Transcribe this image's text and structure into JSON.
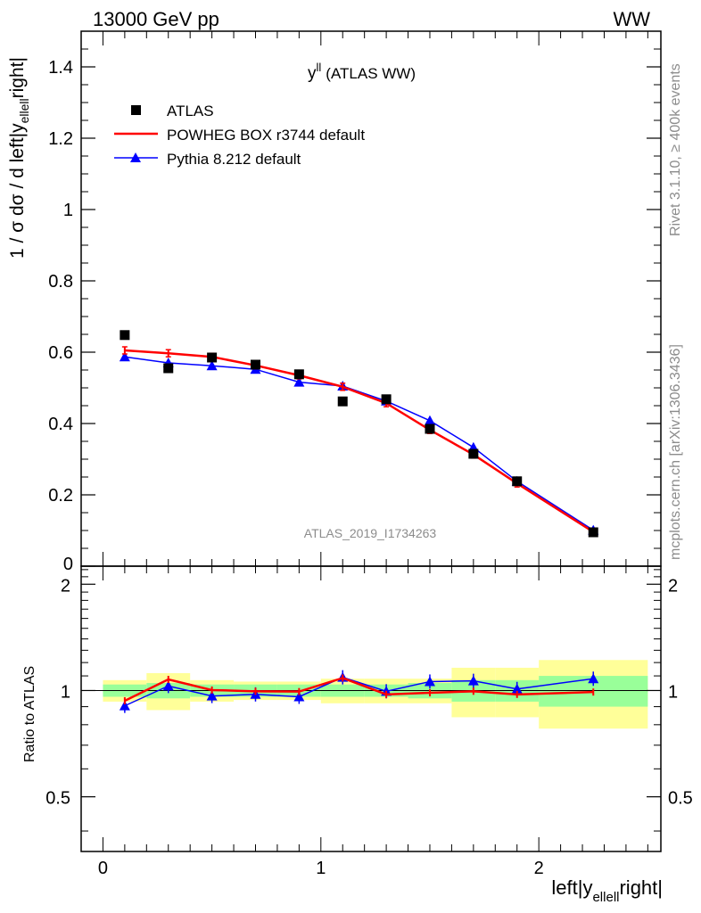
{
  "header": {
    "energy": "13000 GeV pp",
    "process": "WW"
  },
  "side_text": {
    "rivet": "Rivet 3.1.10, ≥ 400k events",
    "mcplots": "mcplots.cern.ch [arXiv:1306.3436]"
  },
  "colors": {
    "data": "#000000",
    "powheg": "#ff0000",
    "pythia": "#0000ff",
    "band_inner": "#99ff99",
    "band_outer": "#ffff99"
  },
  "chart_data": [
    {
      "type": "scatter",
      "panel": "main",
      "title": "y^ll (ATLAS WW)",
      "title_main": "y",
      "title_sup": "ll",
      "title_rest": "(ATLAS WW)",
      "watermark": "ATLAS_2019_I1734263",
      "ylabel": "1 / σ  dσ / d left|y",
      "ylabel_sub": "ellell",
      "ylabel_end": "right|",
      "xlim": [
        -0.1,
        2.56
      ],
      "ylim": [
        0,
        1.5
      ],
      "yticks": [
        0,
        0.2,
        0.4,
        0.6,
        0.8,
        1,
        1.2,
        1.4
      ],
      "ytick_labels": [
        "0",
        "0.2",
        "0.4",
        "0.6",
        "0.8",
        "1",
        "1.2",
        "1.4"
      ],
      "legend_position": "top-left",
      "x": [
        0.1,
        0.3,
        0.5,
        0.7,
        0.9,
        1.1,
        1.3,
        1.5,
        1.7,
        1.9,
        2.25
      ],
      "series": [
        {
          "name": "ATLAS",
          "style": "marker",
          "values": [
            0.648,
            0.555,
            0.585,
            0.565,
            0.538,
            0.462,
            0.468,
            0.385,
            0.315,
            0.238,
            0.095
          ]
        },
        {
          "name": "POWHEG BOX r3744 default",
          "style": "line",
          "values": [
            0.605,
            0.597,
            0.587,
            0.563,
            0.535,
            0.503,
            0.457,
            0.382,
            0.313,
            0.232,
            0.096
          ]
        },
        {
          "name": "Pythia 8.212 default",
          "style": "line-triangle",
          "values": [
            0.587,
            0.57,
            0.562,
            0.552,
            0.516,
            0.505,
            0.463,
            0.408,
            0.333,
            0.238,
            0.101
          ]
        }
      ]
    },
    {
      "type": "line",
      "panel": "ratio",
      "ylabel": "Ratio to ATLAS",
      "xlabel": "left|y",
      "xlabel_sub": "ellell",
      "xlabel_end": "right|",
      "xlim": [
        -0.1,
        2.56
      ],
      "ylim": [
        0.35,
        2.25
      ],
      "yticks": [
        0.5,
        1,
        2
      ],
      "ytick_labels": [
        "0.5",
        "1",
        "2"
      ],
      "xticks": [
        0,
        1,
        2
      ],
      "xtick_labels": [
        "0",
        "1",
        "2"
      ],
      "bins": [
        [
          0,
          0.2
        ],
        [
          0.2,
          0.4
        ],
        [
          0.4,
          0.6
        ],
        [
          0.6,
          0.8
        ],
        [
          0.8,
          1.0
        ],
        [
          1.0,
          1.2
        ],
        [
          1.2,
          1.4
        ],
        [
          1.4,
          1.6
        ],
        [
          1.6,
          1.8
        ],
        [
          1.8,
          2.0
        ],
        [
          2.0,
          2.5
        ]
      ],
      "band_inner": [
        [
          0.96,
          1.04
        ],
        [
          0.95,
          1.05
        ],
        [
          0.96,
          1.04
        ],
        [
          0.96,
          1.04
        ],
        [
          0.96,
          1.04
        ],
        [
          0.96,
          1.04
        ],
        [
          0.96,
          1.04
        ],
        [
          0.95,
          1.05
        ],
        [
          0.93,
          1.07
        ],
        [
          0.93,
          1.07
        ],
        [
          0.9,
          1.1
        ]
      ],
      "band_outer": [
        [
          0.93,
          1.07
        ],
        [
          0.88,
          1.12
        ],
        [
          0.93,
          1.07
        ],
        [
          0.94,
          1.06
        ],
        [
          0.94,
          1.06
        ],
        [
          0.92,
          1.08
        ],
        [
          0.92,
          1.08
        ],
        [
          0.92,
          1.08
        ],
        [
          0.84,
          1.16
        ],
        [
          0.84,
          1.16
        ],
        [
          0.78,
          1.22
        ]
      ],
      "x": [
        0.1,
        0.3,
        0.5,
        0.7,
        0.9,
        1.1,
        1.3,
        1.5,
        1.7,
        1.9,
        2.25
      ],
      "series": [
        {
          "name": "POWHEG BOX r3744 default",
          "values": [
            0.935,
            1.075,
            1.003,
            0.995,
            0.993,
            1.085,
            0.975,
            0.985,
            0.995,
            0.975,
            0.99
          ]
        },
        {
          "name": "Pythia 8.212 default",
          "values": [
            0.905,
            1.03,
            0.965,
            0.975,
            0.96,
            1.09,
            0.995,
            1.06,
            1.065,
            1.01,
            1.08
          ]
        }
      ]
    }
  ]
}
